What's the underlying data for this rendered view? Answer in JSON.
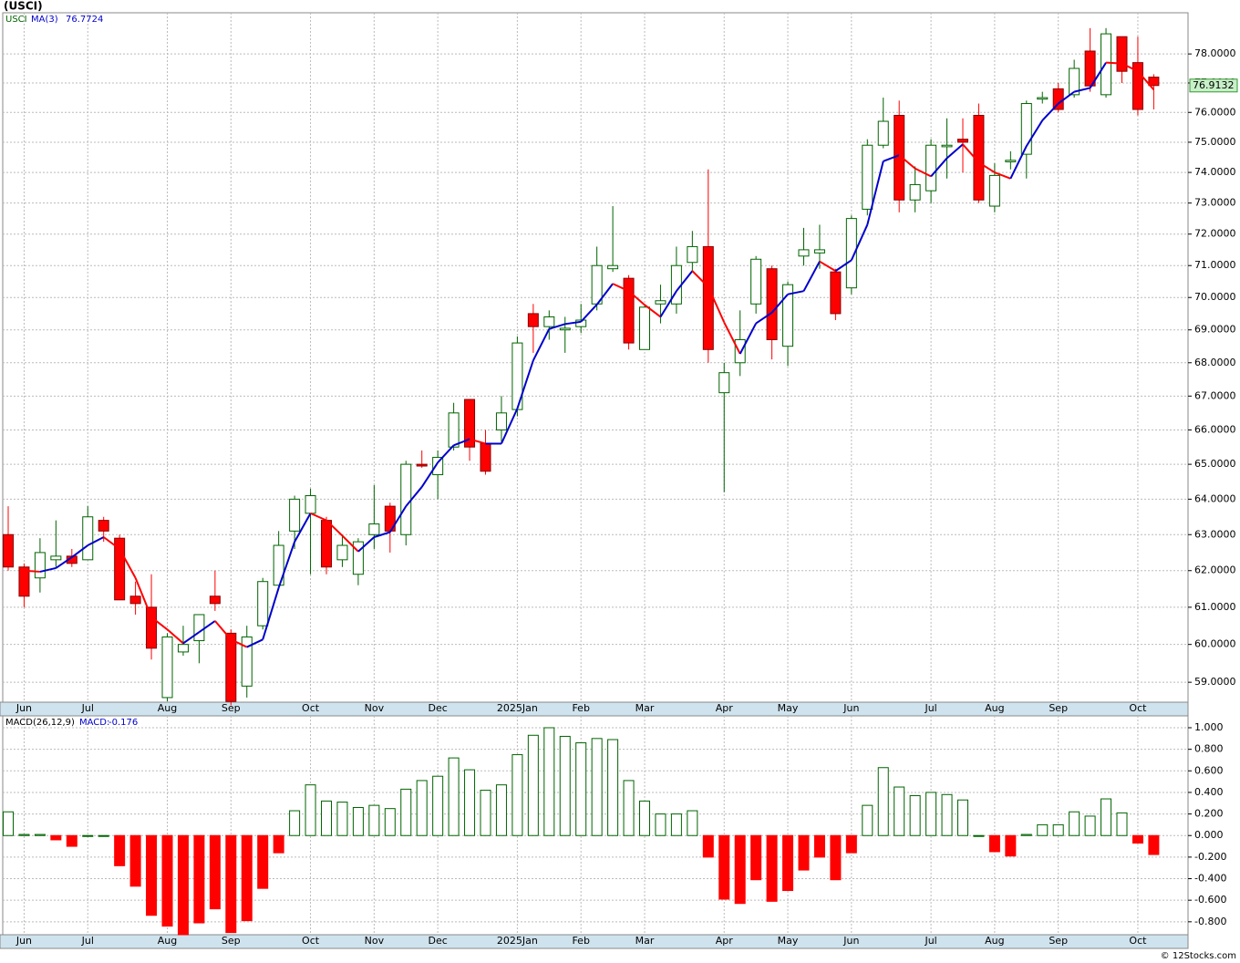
{
  "chart_data": [
    {
      "type": "candlestick",
      "title": "(USCI)",
      "symbol": "USCI",
      "categories": [
        null,
        "Jun",
        null,
        null,
        null,
        "Jul",
        null,
        null,
        null,
        null,
        "Aug",
        null,
        null,
        null,
        "Sep",
        null,
        null,
        null,
        null,
        "Oct",
        null,
        null,
        null,
        "Nov",
        null,
        null,
        null,
        "Dec",
        null,
        null,
        null,
        null,
        "2025Jan",
        null,
        null,
        null,
        "Feb",
        null,
        null,
        null,
        "Mar",
        null,
        null,
        null,
        null,
        "Apr",
        null,
        null,
        null,
        "May",
        null,
        null,
        null,
        "Jun",
        null,
        null,
        null,
        null,
        "Jul",
        null,
        null,
        null,
        "Aug",
        null,
        null,
        null,
        "Sep",
        null,
        null,
        null,
        null,
        "Oct",
        null
      ],
      "open": [
        63.0,
        62.1,
        61.8,
        62.3,
        62.4,
        62.3,
        63.4,
        62.9,
        61.3,
        61.0,
        58.6,
        59.8,
        60.1,
        61.3,
        60.3,
        58.9,
        60.5,
        61.6,
        63.1,
        63.6,
        63.4,
        62.3,
        61.9,
        63.0,
        63.8,
        63.0,
        65.0,
        64.7,
        65.5,
        66.9,
        65.6,
        66.0,
        66.6,
        69.5,
        69.1,
        69.0,
        69.1,
        69.8,
        70.9,
        70.6,
        68.4,
        69.8,
        69.8,
        71.1,
        71.6,
        67.1,
        68.0,
        69.8,
        70.9,
        68.5,
        71.3,
        71.4,
        70.8,
        70.3,
        72.8,
        74.9,
        75.9,
        73.1,
        73.4,
        74.85,
        75.1,
        75.9,
        72.9,
        74.35,
        74.6,
        76.45,
        76.8,
        76.6,
        78.1,
        76.6,
        78.6,
        77.7,
        77.2
      ],
      "high": [
        63.8,
        62.2,
        62.9,
        63.4,
        62.6,
        63.8,
        63.5,
        63.0,
        61.7,
        61.9,
        60.3,
        60.5,
        60.8,
        62.0,
        60.4,
        60.5,
        61.8,
        63.1,
        64.1,
        64.3,
        63.5,
        63.0,
        62.9,
        64.4,
        63.9,
        65.1,
        65.4,
        65.4,
        66.8,
        66.9,
        66.0,
        67.0,
        68.8,
        69.8,
        69.6,
        69.4,
        69.8,
        71.6,
        72.9,
        70.7,
        69.8,
        70.4,
        71.6,
        72.1,
        74.1,
        68.0,
        69.6,
        71.3,
        71.0,
        70.5,
        72.2,
        72.3,
        70.9,
        72.6,
        75.1,
        76.5,
        76.4,
        74.2,
        75.1,
        75.8,
        75.8,
        76.3,
        74.3,
        74.7,
        76.4,
        76.7,
        77.0,
        77.8,
        78.9,
        78.9,
        78.6,
        78.6,
        77.3
      ],
      "low": [
        62.0,
        61.0,
        61.4,
        62.1,
        62.1,
        62.3,
        62.8,
        61.2,
        60.8,
        59.6,
        58.5,
        59.7,
        59.5,
        60.9,
        58.4,
        58.6,
        60.4,
        61.6,
        62.6,
        61.9,
        61.9,
        62.1,
        61.6,
        62.6,
        62.5,
        62.7,
        64.9,
        64.0,
        65.4,
        65.1,
        64.7,
        65.6,
        66.4,
        68.3,
        68.7,
        68.3,
        68.9,
        69.6,
        70.8,
        68.4,
        68.4,
        69.2,
        69.5,
        70.8,
        68.0,
        64.2,
        67.6,
        69.5,
        68.1,
        67.9,
        71.0,
        70.9,
        69.3,
        70.1,
        72.6,
        74.8,
        72.7,
        72.7,
        73.0,
        73.8,
        74.0,
        73.0,
        72.7,
        74.1,
        73.8,
        76.3,
        76.0,
        76.5,
        76.7,
        76.5,
        77.0,
        75.9,
        76.1
      ],
      "close": [
        62.1,
        61.3,
        62.5,
        62.4,
        62.2,
        63.5,
        63.1,
        61.2,
        61.1,
        59.9,
        60.2,
        60.0,
        60.8,
        61.1,
        58.5,
        60.2,
        61.7,
        62.7,
        64.0,
        64.1,
        62.1,
        62.7,
        62.8,
        63.3,
        63.1,
        65.0,
        64.95,
        65.2,
        66.5,
        65.5,
        64.8,
        66.5,
        68.6,
        69.1,
        69.4,
        69.05,
        69.3,
        71.0,
        71.0,
        68.6,
        69.7,
        69.9,
        71.0,
        71.6,
        68.4,
        67.7,
        68.7,
        71.2,
        68.7,
        70.4,
        71.5,
        71.5,
        69.5,
        72.5,
        74.9,
        75.7,
        73.1,
        73.6,
        74.9,
        74.9,
        75.0,
        73.1,
        73.9,
        74.4,
        76.3,
        76.5,
        76.1,
        77.5,
        76.9,
        78.7,
        77.4,
        76.1,
        76.9132
      ],
      "up_color": "#006400",
      "down_color": "#ff0000",
      "ma": {
        "name": "MA(3)",
        "up_color": "#0000cc",
        "down_color": "#ff0000",
        "values": [
          null,
          62.0,
          61.97,
          62.07,
          62.37,
          62.7,
          62.93,
          62.6,
          61.8,
          60.73,
          60.4,
          60.03,
          60.33,
          60.63,
          60.13,
          59.93,
          60.13,
          61.53,
          62.8,
          63.6,
          63.4,
          62.97,
          62.53,
          62.93,
          63.07,
          63.8,
          64.35,
          65.05,
          65.55,
          65.73,
          65.6,
          65.6,
          66.63,
          68.07,
          69.03,
          69.18,
          69.25,
          69.78,
          70.43,
          70.2,
          69.77,
          69.4,
          70.2,
          70.83,
          70.33,
          69.23,
          68.27,
          69.2,
          69.53,
          70.1,
          70.2,
          71.13,
          70.83,
          71.17,
          72.3,
          74.37,
          74.57,
          74.13,
          73.87,
          74.47,
          74.93,
          74.33,
          74.0,
          73.8,
          74.87,
          75.73,
          76.3,
          76.7,
          76.83,
          77.7,
          77.67,
          77.4,
          76.7724
        ]
      },
      "ylim": [
        58.48,
        79.44
      ],
      "log_scale": true,
      "grid": true,
      "yticks": [
        {
          "value": 59,
          "label": "59.0000"
        },
        {
          "value": 60,
          "label": "60.0000"
        },
        {
          "value": 61,
          "label": "61.0000"
        },
        {
          "value": 62,
          "label": "62.0000"
        },
        {
          "value": 63,
          "label": "63.0000"
        },
        {
          "value": 64,
          "label": "64.0000"
        },
        {
          "value": 65,
          "label": "65.0000"
        },
        {
          "value": 66,
          "label": "66.0000"
        },
        {
          "value": 67,
          "label": "67.0000"
        },
        {
          "value": 68,
          "label": "68.0000"
        },
        {
          "value": 69,
          "label": "69.0000"
        },
        {
          "value": 70,
          "label": "70.0000"
        },
        {
          "value": 71,
          "label": "71.0000"
        },
        {
          "value": 72,
          "label": "72.0000"
        },
        {
          "value": 73,
          "label": "73.0000"
        },
        {
          "value": 74,
          "label": "74.0000"
        },
        {
          "value": 75,
          "label": "75.0000"
        },
        {
          "value": 76,
          "label": "76.0000"
        },
        {
          "value": 77,
          "label": "77.0000"
        },
        {
          "value": 78,
          "label": "78.0000"
        }
      ]
    },
    {
      "type": "bar",
      "title": "MACD(26,12,9)",
      "series": [
        {
          "name": "MACD:",
          "up_color": "#006400",
          "down_color": "#ff0000",
          "values": [
            0.22,
            0.01,
            0.01,
            -0.04,
            -0.1,
            0.0,
            0.0,
            -0.28,
            -0.47,
            -0.74,
            -0.84,
            -0.92,
            -0.81,
            -0.68,
            -0.9,
            -0.79,
            -0.49,
            -0.16,
            0.23,
            0.47,
            0.32,
            0.31,
            0.26,
            0.28,
            0.25,
            0.43,
            0.51,
            0.55,
            0.72,
            0.61,
            0.42,
            0.47,
            0.75,
            0.93,
            1.0,
            0.92,
            0.86,
            0.9,
            0.89,
            0.51,
            0.32,
            0.2,
            0.2,
            0.23,
            -0.2,
            -0.59,
            -0.63,
            -0.41,
            -0.61,
            -0.51,
            -0.32,
            -0.2,
            -0.41,
            -0.16,
            0.28,
            0.63,
            0.45,
            0.37,
            0.4,
            0.38,
            0.33,
            0.0,
            -0.15,
            -0.19,
            0.01,
            0.1,
            0.1,
            0.22,
            0.18,
            0.34,
            0.21,
            -0.07,
            -0.176
          ]
        }
      ],
      "ylim": [
        -0.92,
        1.11
      ],
      "grid": true,
      "yticks": [
        {
          "value": -0.8,
          "label": "-0.800"
        },
        {
          "value": -0.6,
          "label": "-0.600"
        },
        {
          "value": -0.4,
          "label": "-0.400"
        },
        {
          "value": -0.2,
          "label": "-0.200"
        },
        {
          "value": 0,
          "label": "0.000"
        },
        {
          "value": 0.2,
          "label": "0.200"
        },
        {
          "value": 0.4,
          "label": "0.400"
        },
        {
          "value": 0.6,
          "label": "0.600"
        },
        {
          "value": 0.8,
          "label": "0.800"
        },
        {
          "value": 1.0,
          "label": "1.000"
        }
      ]
    }
  ],
  "credit": "© 12Stocks.com"
}
